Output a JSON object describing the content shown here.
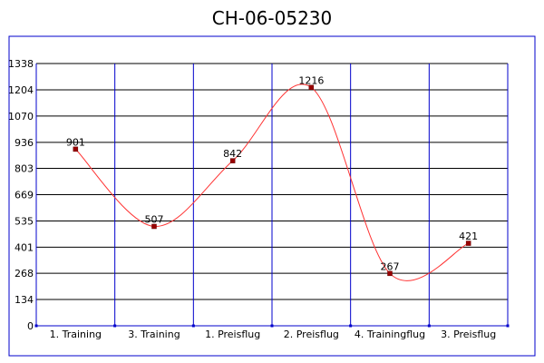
{
  "chart_data": {
    "type": "line",
    "title": "CH-06-05230",
    "xlabel": "",
    "ylabel": "",
    "categories": [
      "1. Training",
      "3. Training",
      "1. Preisflug",
      "2. Preisflug",
      "4. Trainingflug",
      "3. Preisflug"
    ],
    "y_ticks": [
      "0",
      "134",
      "268",
      "401",
      "535",
      "669",
      "803",
      "936",
      "1070",
      "1204",
      "1338"
    ],
    "ylim": [
      0,
      1338
    ],
    "grid": true,
    "legend": "none",
    "series": [
      {
        "values": [
          901,
          507,
          842,
          1216,
          267,
          421
        ],
        "labels": [
          "901",
          "507",
          "842",
          "1216",
          "267",
          "421"
        ]
      }
    ],
    "colors": {
      "line": "#ff3333",
      "marker": "#990000",
      "grid": "#0000cc",
      "grid_h": "#000000",
      "frame": "#0000cc"
    }
  }
}
